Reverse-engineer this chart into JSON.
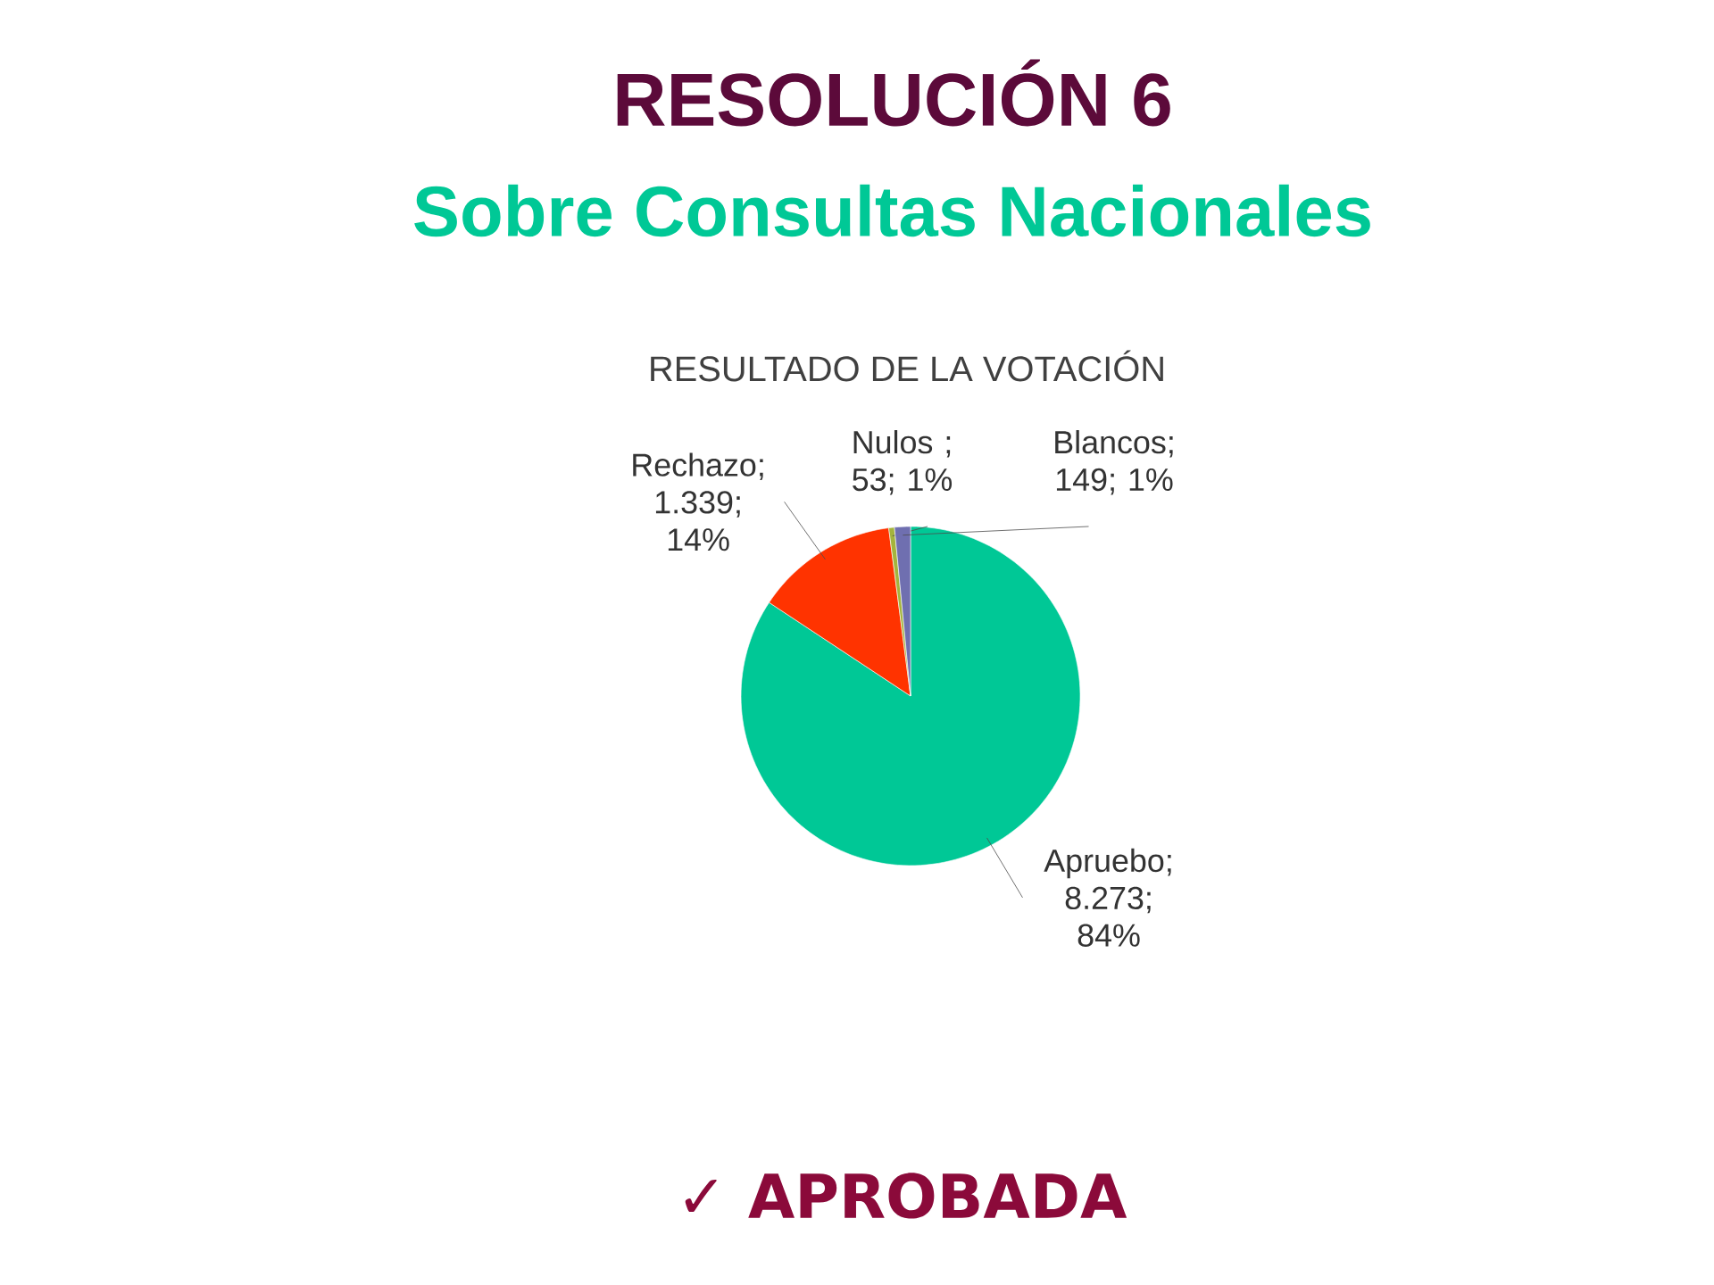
{
  "chart_data": {
    "type": "pie",
    "title": "RESULTADO DE LA VOTACIÓN",
    "categories": [
      "Apruebo",
      "Rechazo",
      "Nulos",
      "Blancos"
    ],
    "values": [
      8273,
      1339,
      53,
      149
    ],
    "value_labels": [
      "; 8.273; 84%",
      "; 1.339; 14%",
      " ; 53; 1%",
      "; 149; 1%"
    ],
    "colors": [
      "#00c896",
      "#ff3300",
      "#a4b43c",
      "#6f6fb0"
    ],
    "annotations": [
      "RESOLUCIÓN 6",
      "Sobre Consultas Nacionales",
      "✓ APROBADA"
    ]
  }
}
